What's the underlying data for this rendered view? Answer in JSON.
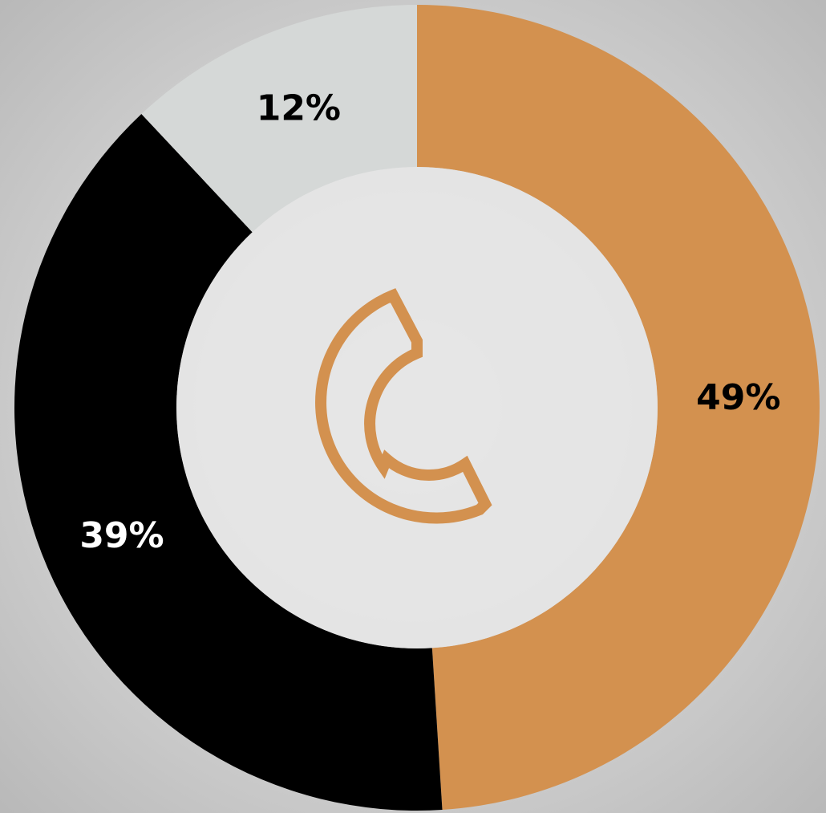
{
  "chart_data": {
    "type": "donut",
    "values": [
      49,
      39,
      12
    ],
    "value_labels": [
      "49%",
      "39%",
      "12%"
    ],
    "colors": [
      "#d3914f",
      "#000000",
      "#d5d8d7"
    ]
  }
}
